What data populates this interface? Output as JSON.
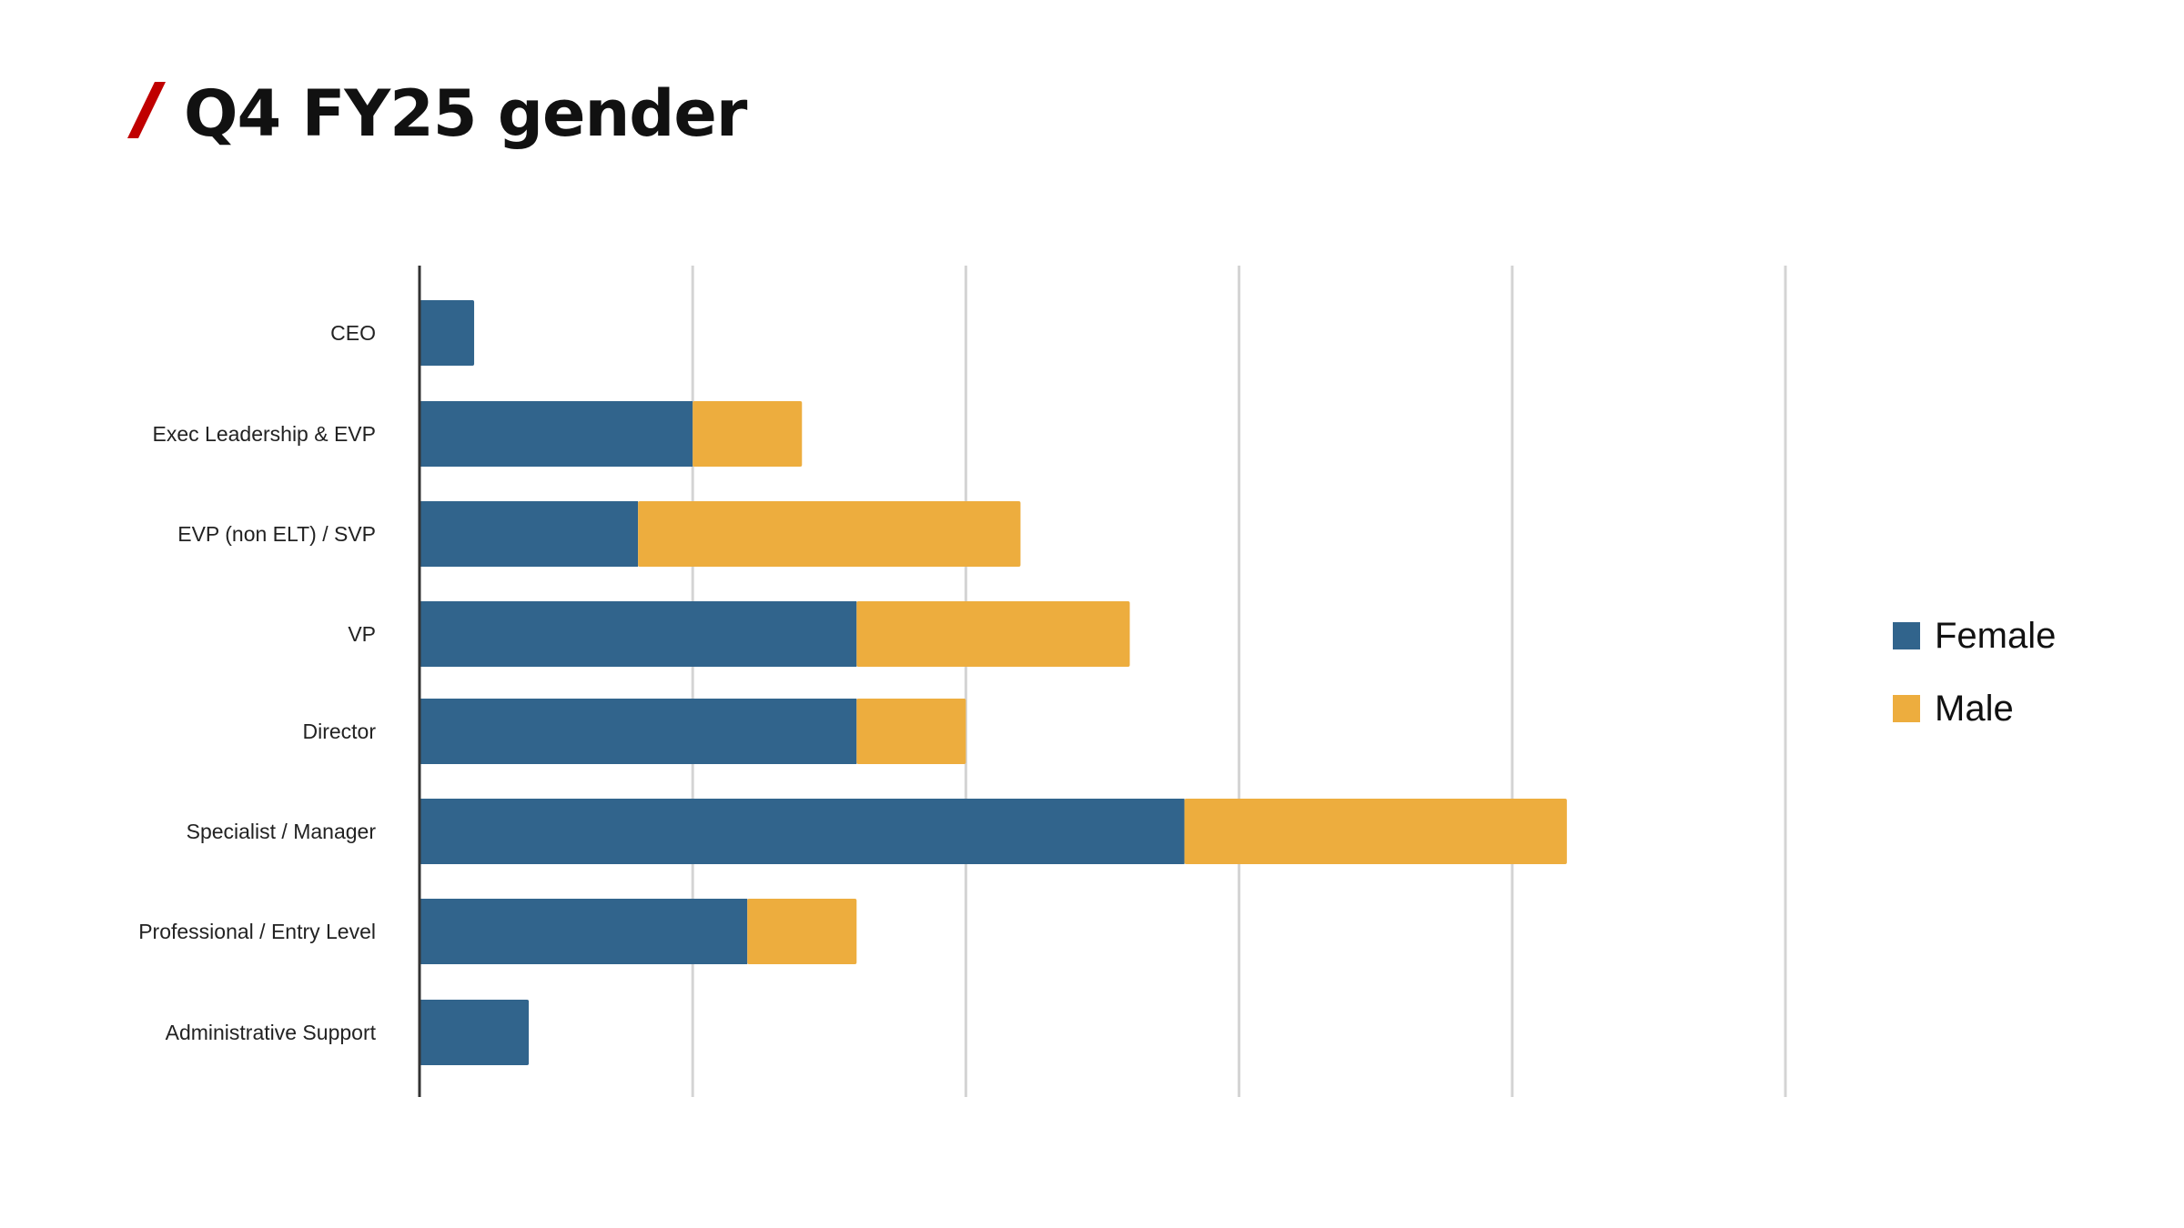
{
  "page": {
    "title": "Q4 FY25 gender",
    "accent_color": "#c00000"
  },
  "chart_data": {
    "type": "bar",
    "orientation": "horizontal",
    "stacked": true,
    "categories": [
      "CEO",
      "Exec Leadership & EVP",
      "EVP (non ELT) / SVP",
      "VP",
      "Director",
      "Specialist / Manager",
      "Professional / Entry Level",
      "Administrative Support"
    ],
    "series": [
      {
        "name": "Female",
        "color": "#31648c",
        "values": [
          1,
          5,
          4,
          8,
          8,
          14,
          6,
          2
        ]
      },
      {
        "name": "Male",
        "color": "#edad3e",
        "values": [
          0,
          2,
          7,
          5,
          2,
          7,
          2,
          0
        ]
      }
    ],
    "xlim": [
      0,
      25
    ],
    "grid": true,
    "legend": "right",
    "title": "",
    "xlabel": "",
    "ylabel": ""
  }
}
